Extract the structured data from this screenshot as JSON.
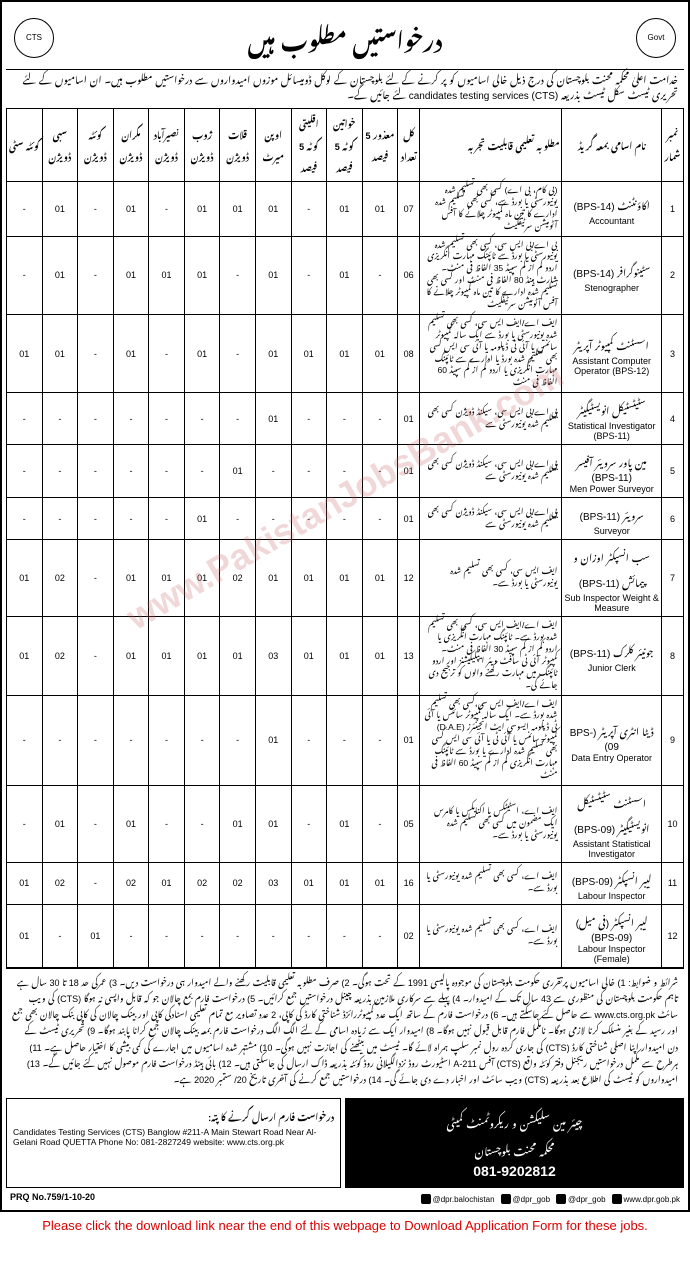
{
  "watermark": "www.PakistanJobsBank.com",
  "header": {
    "title_urdu": "درخواستیں مطلوب ہیں",
    "logo_left": "CTS",
    "logo_right": "Govt"
  },
  "intro": "خدامت اعلیٰ محکمہ محنت بلوچستان کی درج ذیل خالی اسامیوں کو پر کرنے کے لئے بلوچستان کے لوکل ڈومیسائل موزوں امیدواروں سے درخواستیں مطلوب ہیں۔ ان اسامیوں کے لئے تحریری ٹیسٹ سکل ٹیسٹ بذریعہ candidates testing services (CTS) لئے جائیں گے۔",
  "table": {
    "headers": {
      "sr": "نمبر شمار",
      "post": "نام اسامی بمعہ گریڈ",
      "qual": "مطلوبہ تعلیمی قابلیت تجربہ",
      "total": "کل تعداد",
      "disabled": "معذور\n5 فیصد",
      "women": "خواتین کوٹہ\n5 فیصد",
      "minority": "اقلیتی کوٹہ\n5 فیصد",
      "open": "اوپن میرٹ",
      "qalat": "قلات ڈویژن",
      "zhob": "ژوب ڈویژن",
      "naseer": "نصیرآباد ڈویژن",
      "makran": "مکران ڈویژن",
      "quetta": "کوئٹہ ڈویژن",
      "sibi": "سبی ڈویژن",
      "quetta_city": "کوئٹہ سٹی"
    },
    "rows": [
      {
        "sr": "1",
        "post_urdu": "اکاؤنٹنٹ (BPS-14)",
        "post_eng": "Accountant",
        "qual": "(بی کام، بی اے) کسی بھی تسلیم شدہ یونیورسٹی یا بورڈ سے، کسی بھی تسلیم شدہ ادارے کا تین ماہ کمپیوٹر چلانے کا آفس آٹومیشن سرٹیفکیٹ",
        "total": "07",
        "disabled": "01",
        "women": "01",
        "minority": "-",
        "open": "01",
        "qalat": "01",
        "zhob": "01",
        "naseer": "-",
        "makran": "01",
        "quetta": "-",
        "sibi": "01",
        "quetta_city": "-"
      },
      {
        "sr": "2",
        "post_urdu": "سٹینوگرافر (BPS-14)",
        "post_eng": "Stenographer",
        "qual": "بی اے/بی ایس سی، کسی بھی تسلیم شدہ یونیورسٹی یا بورڈ سے ٹائپنگ مہارت انگریزی اردو کم از کم سپیڈ 35 الفاظ فی منٹ۔ شارٹ ہینڈ 80 الفاظ فی منٹ اور کسی بھی تسلیم شدہ ادارے کا تین ماہ کمپیوٹر چلانے کا آفس آٹومیشن سرٹیفکیٹ",
        "total": "06",
        "disabled": "-",
        "women": "01",
        "minority": "-",
        "open": "01",
        "qalat": "-",
        "zhob": "01",
        "naseer": "01",
        "makran": "01",
        "quetta": "-",
        "sibi": "01",
        "quetta_city": "-"
      },
      {
        "sr": "3",
        "post_urdu": "اسسٹنٹ کمپیوٹر آپریٹر",
        "post_eng": "Assistant Computer Operator (BPS-12)",
        "qual": "ایف اے/ایف ایس سی، کسی بھی تسلیم شدہ یونیورسٹی یا بورڈ سے ایک سالہ کمپیوٹر سائنس یا آئی ٹی ڈپلومہ یا آئی سی ایس کسی بھی تسلیم شدہ بورڈ یا ادارے سے ٹائپنگ مہارت انگریزی یا اردو کم از کم سپیڈ 60 الفاظ فی منٹ",
        "total": "08",
        "disabled": "01",
        "women": "01",
        "minority": "01",
        "open": "01",
        "qalat": "-",
        "zhob": "01",
        "naseer": "-",
        "makran": "01",
        "quetta": "-",
        "sibi": "01",
        "quetta_city": "01"
      },
      {
        "sr": "4",
        "post_urdu": "سٹیٹسٹیکل انویسٹیگیٹر",
        "post_eng": "Statistical Investigator (BPS-11)",
        "qual": "بی اے/بی ایس سی، سیکنڈ ڈویژن کسی بھی تسلیم شدہ یونیورسٹی سے",
        "total": "01",
        "disabled": "-",
        "women": "-",
        "minority": "-",
        "open": "01",
        "qalat": "-",
        "zhob": "-",
        "naseer": "-",
        "makran": "-",
        "quetta": "-",
        "sibi": "-",
        "quetta_city": "-"
      },
      {
        "sr": "5",
        "post_urdu": "مین پاور سرویئر آفیسر (BPS-11)",
        "post_eng": "Men Power Surveyor",
        "qual": "بی اے/بی ایس سی، سیکنڈ ڈویژن کسی بھی تسلیم شدہ یونیورسٹی سے",
        "total": "01",
        "disabled": "-",
        "women": "-",
        "minority": "-",
        "open": "-",
        "qalat": "01",
        "zhob": "-",
        "naseer": "-",
        "makran": "-",
        "quetta": "-",
        "sibi": "-",
        "quetta_city": "-"
      },
      {
        "sr": "6",
        "post_urdu": "سرویئر (BPS-11)",
        "post_eng": "Surveyor",
        "qual": "بی اے/بی ایس سی، سیکنڈ ڈویژن کسی بھی تسلیم شدہ یونیورسٹی سے",
        "total": "01",
        "disabled": "-",
        "women": "-",
        "minority": "-",
        "open": "-",
        "qalat": "-",
        "zhob": "01",
        "naseer": "-",
        "makran": "-",
        "quetta": "-",
        "sibi": "-",
        "quetta_city": "-"
      },
      {
        "sr": "7",
        "post_urdu": "سب انسپکٹر اوزان و پیمائش (BPS-11)",
        "post_eng": "Sub Inspector Weight & Measure",
        "qual": "ایف ایس سی، کسی بھی تسلیم شدہ یونیورسٹی یا بورڈ سے۔",
        "total": "12",
        "disabled": "01",
        "women": "01",
        "minority": "01",
        "open": "01",
        "qalat": "02",
        "zhob": "01",
        "naseer": "01",
        "makran": "01",
        "quetta": "-",
        "sibi": "02",
        "quetta_city": "01"
      },
      {
        "sr": "8",
        "post_urdu": "جونیئر کلرک (BPS-11)",
        "post_eng": "Junior Clerk",
        "qual": "ایف اے/ایف ایس سی، کسی بھی تسلیم شدہ بورڈ سے۔ ٹائپنگ مہارت انگریزی یا اردو کم از کم سپیڈ 30 الفاظ فی منٹ۔ کمپیوٹر آئی ٹی سافٹ ویئر ایپلیکیشنز اور اردو ٹائپنگ میں مہارت رکھنے والوں کو ترجیح دی جائے گی۔",
        "total": "13",
        "disabled": "01",
        "women": "01",
        "minority": "01",
        "open": "03",
        "qalat": "01",
        "zhob": "01",
        "naseer": "01",
        "makran": "01",
        "quetta": "-",
        "sibi": "02",
        "quetta_city": "01"
      },
      {
        "sr": "9",
        "post_urdu": "ڈیٹا انٹری آپریٹر (BPS-09)",
        "post_eng": "Data Entry Operator",
        "qual": "ایف اے/ایف ایس سی،کسی بھی تسلیم شدہ بورڈ سے۔ ایک سالہ کمپیوٹر سائنس یا آئی ٹی ڈپلومہ ایسوسی ایٹ انجینئرز (D.A.E) کمپیوٹر سائنس یا آئی ٹی یا آئی سی ایس کسی بھی تسلیم شدہ ادارے یا بورڈ سے ٹائپنگ مہارت انگریزی کم از کم سپیڈ 60 الفاظ فی منٹ",
        "total": "01",
        "disabled": "-",
        "women": "-",
        "minority": "-",
        "open": "01",
        "qalat": "-",
        "zhob": "-",
        "naseer": "-",
        "makran": "-",
        "quetta": "-",
        "sibi": "-",
        "quetta_city": "-"
      },
      {
        "sr": "10",
        "post_urdu": "اسسٹنٹ سٹیٹسٹیکل انویسٹیگیٹر (BPS-09)",
        "post_eng": "Assistant Statistical Investigator",
        "qual": "ایف اے، اسٹیٹکس یا اکنامکس یا کامرس ایک مضمون میں کسی بھی تسلیم شدہ یونیورسٹی یا بورڈ سے۔",
        "total": "05",
        "disabled": "-",
        "women": "01",
        "minority": "-",
        "open": "01",
        "qalat": "01",
        "zhob": "-",
        "naseer": "-",
        "makran": "01",
        "quetta": "-",
        "sibi": "01",
        "quetta_city": "-"
      },
      {
        "sr": "11",
        "post_urdu": "لیبر انسپکٹر (BPS-09)",
        "post_eng": "Labour Inspector",
        "qual": "ایف اے، کسی بھی تسلیم شدہ یونیورسٹی یا بورڈ سے۔",
        "total": "16",
        "disabled": "01",
        "women": "01",
        "minority": "01",
        "open": "03",
        "qalat": "02",
        "zhob": "02",
        "naseer": "01",
        "makran": "02",
        "quetta": "-",
        "sibi": "02",
        "quetta_city": "01"
      },
      {
        "sr": "12",
        "post_urdu": "لیبر انسپکٹر (فی میل) (BPS-09)",
        "post_eng": "Labour Inspector (Female)",
        "qual": "ایف اے، کسی بھی تسلیم شدہ یونیورسٹی یا بورڈ سے۔",
        "total": "02",
        "disabled": "-",
        "women": "-",
        "minority": "-",
        "open": "-",
        "qalat": "-",
        "zhob": "-",
        "naseer": "-",
        "makran": "-",
        "quetta": "01",
        "sibi": "-",
        "quetta_city": "01"
      }
    ]
  },
  "terms": "شرائط و ضوابط: 1) خالی اسامیوں پرتقرری حکومت بلوچستان کی موجودہ پالیسی 1991 کے تحت ہوگی۔ 2) صرف مطلوبہ تعلیمی قابلیت رکھنے والے امیدوار ہی درخواست دیں۔ 3) عمرکی حد 18 تا 30 سال ہے تاہم حکومت بلوچستان کی منظوری سے 43 سال تک کے امیدوار۔ 4) پہلے سے سرکاری ملازمین بذریعہ چینل درخواستیں جمع کرائیں۔ 5) درخواست فارم بمع چالان جو کہ قابل واپسی نہ ہوگا (CTS) کی ویب سائٹ www.cts.org.pk سے حاصل کئے جاسکتے ہیں۔ 6) درخواست فارم کے ساتھ ایک عدد کمپیوٹررائزڈ شناختی کارڈ کی کاپی، 2 عدد تصاویر مع تمام تعلیمی اسنادکی کاپی اور بینک چالان کی کاپی بنک چالان بھی جمع اور رسید کے بغیر منسلک کرنا لازمی ہوگا۔ نامکمل فارم قابل قبول نہیں ہوگا۔ 8) امیدوار ایک سے زیادہ اسامی کے لئے الگ الگ درخواست فارم بمعہ بینک چالان جمع کرانا پابند ہوگا۔ 9) تحریری ٹیسٹ کے دن امیدوار اپنا اصلی شناختی کارڈ (CTS) کی جاری کردہ رول نمبر سلپ ہمراہ لائے گا۔ ٹیسٹ میں بیٹھنے کی اجازت نہیں ہوگی۔ 10) مشتہر شدہ اسامیوں میں اجارے کی کمی بیشی کا اختیار حاصل ہے۔ 11) ہرطرح سے مکمل درخواستیں ریجنل دفتر کوئٹہ واقع (CTS) آفس 211-A اسٹیورٹ روڈ نزدالگیلانی روڈ کوئٹہ بذریعہ ڈاک ارسال کی جاسکتی ہیں۔ 12) بائی ہینڈ درخواست فارم موصول نہیں کئے جائیں گے۔ 13) امیدواروں کو ٹیسٹ کی اطلاع بعد بذریعہ (CTS) ویب سائٹ اور اخبار دے دی جائے گی۔ 14) درخواستیں جمع کرنے کی آخری تاریخ 20/ ستمبر 2020 ہے۔",
  "footer": {
    "left": {
      "title": "درخواست فارم ارسال کرنے کا پتہ:",
      "address": "Candidates Testing Services (CTS) Banglow #211-A Main Stewart Road Near Al-Gelani Road QUETTA  Phone No: 081-2827249  website: www.cts.org.pk"
    },
    "right": {
      "title": "چیئر مین سلیکشن و ریکروٹمنٹ کمیٹی",
      "dept": "محکمہ محنت بلوچستان",
      "phone": "081-9202812"
    },
    "social": [
      {
        "icon": "fb",
        "text": "@dpr.balochistan"
      },
      {
        "icon": "tw",
        "text": "@dpr_gob"
      },
      {
        "icon": "tw",
        "text": "@dpr_gob"
      },
      {
        "icon": "web",
        "text": "www.dpr.gob.pk"
      }
    ],
    "prq": "PRQ No.759/1-10-20"
  },
  "download_note": "Please click the download link near the end of this webpage to Download Application Form for these jobs."
}
